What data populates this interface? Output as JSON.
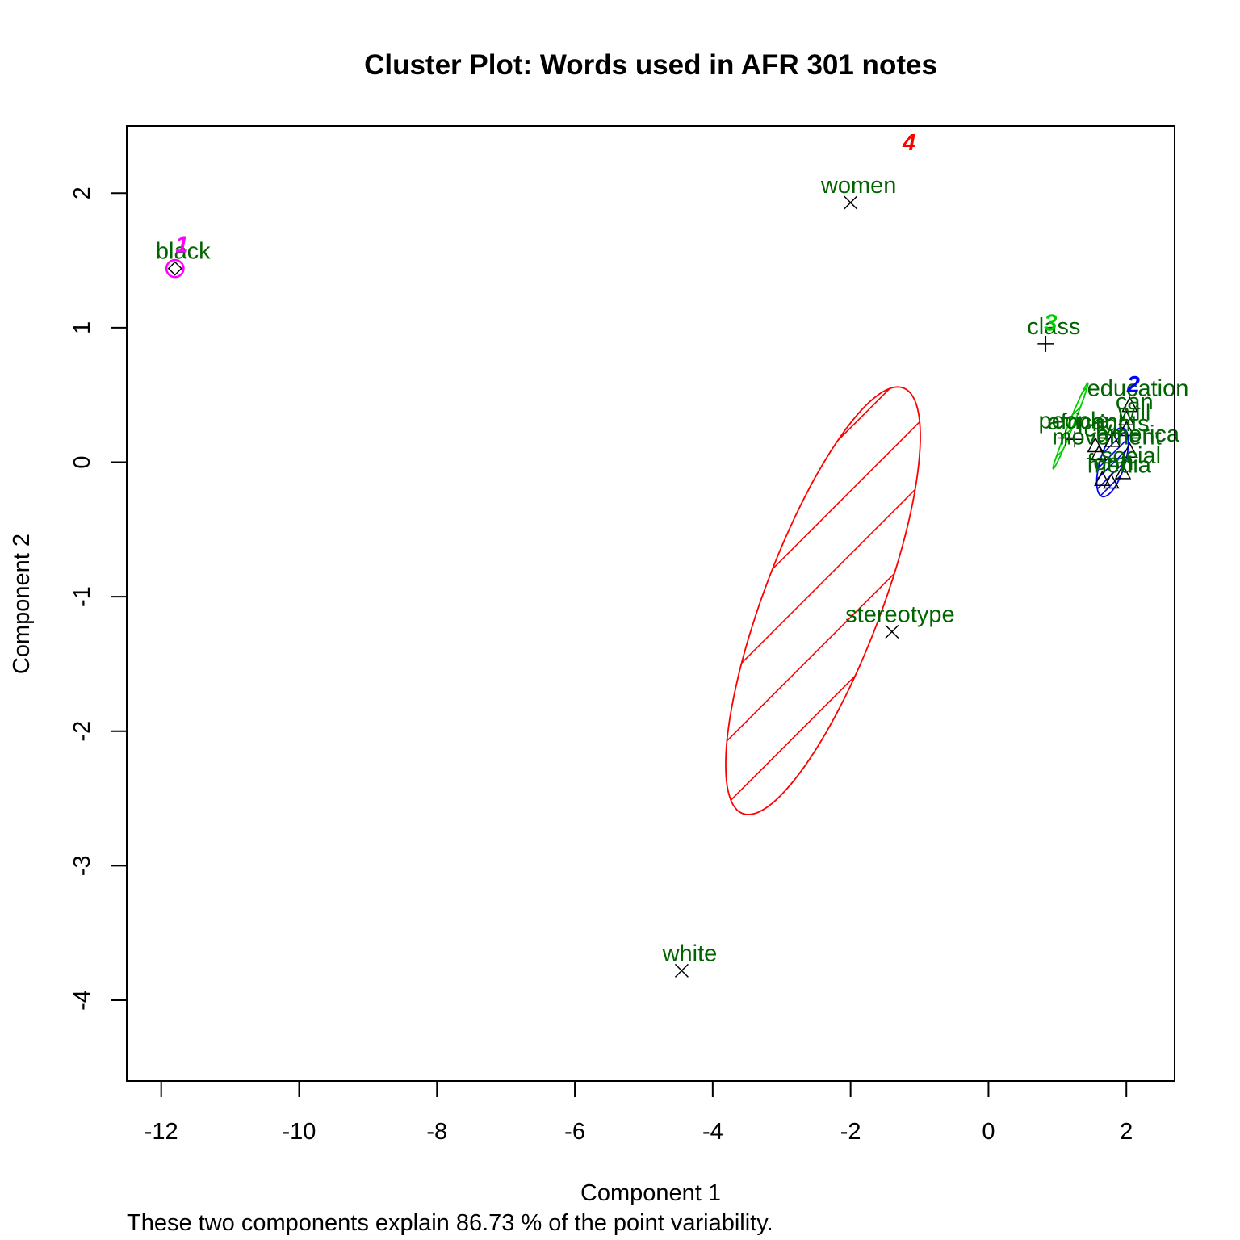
{
  "chart_data": {
    "type": "scatter",
    "title": "Cluster Plot: Words used in AFR 301 notes",
    "xlabel": "Component 1",
    "ylabel": "Component 2",
    "subtitle": "These two components explain 86.73 % of the point variability.",
    "xlim": [
      -12.5,
      2.7
    ],
    "ylim": [
      -4.6,
      2.5
    ],
    "x_ticks": [
      -12,
      -10,
      -8,
      -6,
      -4,
      -2,
      0,
      2
    ],
    "y_ticks": [
      -4,
      -3,
      -2,
      -1,
      0,
      1,
      2
    ],
    "grid": false,
    "colors": {
      "cluster_1": "#ff00ff",
      "cluster_2": "#0000ff",
      "cluster_3": "#00cc00",
      "cluster_4": "#ff0000",
      "word_label": "#006400",
      "point": "#000000"
    },
    "clusters": [
      {
        "label": "1",
        "color": "#ff00ff",
        "center": [
          -11.8,
          1.44
        ],
        "a": 0.12,
        "b": 0.12,
        "angle": 0,
        "label_pos": [
          -11.7,
          1.62
        ],
        "symbol": "diamond",
        "shade": false
      },
      {
        "label": "2",
        "color": "#0000ff",
        "center": [
          1.8,
          0.0
        ],
        "a": 0.52,
        "b": 0.18,
        "angle": 73,
        "label_pos": [
          2.1,
          0.58
        ],
        "symbol": "triangle",
        "shade": true
      },
      {
        "label": "3",
        "color": "#00cc00",
        "center": [
          1.19,
          0.27
        ],
        "a": 0.67,
        "b": 0.035,
        "angle": 68,
        "label_pos": [
          0.9,
          1.04
        ],
        "symbol": "plus",
        "shade": true
      },
      {
        "label": "4",
        "color": "#ff0000",
        "center": [
          -2.4,
          -1.03
        ],
        "a": 3.3,
        "b": 0.85,
        "angle": 69.3,
        "label_pos": [
          -1.15,
          2.38
        ],
        "symbol": "cross",
        "shade": true
      }
    ],
    "points": [
      {
        "label": "black",
        "x": -11.8,
        "y": 1.44,
        "cluster": 1
      },
      {
        "label": "women",
        "x": -2.0,
        "y": 1.93,
        "cluster": 4
      },
      {
        "label": "stereotype",
        "x": -1.4,
        "y": -1.26,
        "cluster": 4
      },
      {
        "label": "white",
        "x": -4.45,
        "y": -3.78,
        "cluster": 4
      },
      {
        "label": "class",
        "x": 0.83,
        "y": 0.88,
        "cluster": 3
      },
      {
        "label": "people",
        "x": 1.12,
        "y": 0.18,
        "cluster": 3
      },
      {
        "label": "african",
        "x": 1.25,
        "y": 0.17,
        "cluster": 3
      },
      {
        "label": "civil",
        "x": 1.55,
        "y": 0.12,
        "cluster": 2
      },
      {
        "label": "education",
        "x": 2.05,
        "y": 0.42,
        "cluster": 2
      },
      {
        "label": "can",
        "x": 2.0,
        "y": 0.32,
        "cluster": 2
      },
      {
        "label": "will",
        "x": 2.0,
        "y": 0.24,
        "cluster": 2
      },
      {
        "label": "rights",
        "x": 1.8,
        "y": 0.16,
        "cluster": 2
      },
      {
        "label": "media",
        "x": 1.78,
        "y": -0.15,
        "cluster": 2
      },
      {
        "label": "america",
        "x": 2.05,
        "y": 0.08,
        "cluster": 2
      },
      {
        "label": "social",
        "x": 1.95,
        "y": -0.08,
        "cluster": 2
      },
      {
        "label": "form",
        "x": 1.65,
        "y": -0.13,
        "cluster": 2
      },
      {
        "label": "movement",
        "x": 1.6,
        "y": 0.06,
        "cluster": 2
      }
    ]
  }
}
